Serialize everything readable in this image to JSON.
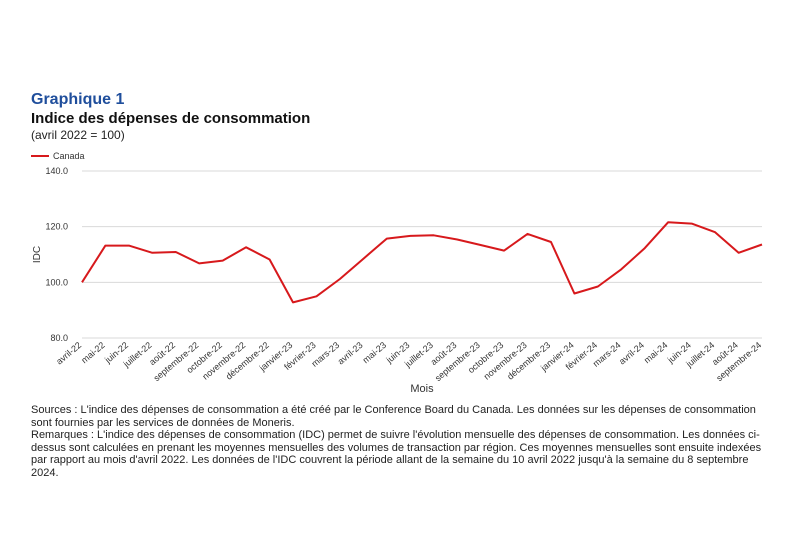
{
  "header": {
    "number": "Graphique 1",
    "title": "Indice des dépenses de consommation",
    "subtitle": "(avril 2022 = 100)"
  },
  "colors": {
    "series": "#d7191c",
    "grid": "#d9d9d9",
    "title": "#1f4e9c"
  },
  "chart_data": {
    "type": "line",
    "xlabel": "Mois",
    "ylabel": "IDC",
    "ylim": [
      80,
      140
    ],
    "yticks": [
      "80.0",
      "100.0",
      "120.0",
      "140.0"
    ],
    "ytick_values": [
      80,
      100,
      120,
      140
    ],
    "grid": true,
    "legend_position": "top-left",
    "categories": [
      "avril-22",
      "mai-22",
      "juin-22",
      "juillet-22",
      "août-22",
      "septembre-22",
      "octobre-22",
      "novembre-22",
      "décembre-22",
      "janvier-23",
      "février-23",
      "mars-23",
      "avril-23",
      "mai-23",
      "juin-23",
      "juillet-23",
      "août-23",
      "septembre-23",
      "octobre-23",
      "novembre-23",
      "décembre-23",
      "janvier-24",
      "février-24",
      "mars-24",
      "avril-24",
      "mai-24",
      "juin-24",
      "juillet-24",
      "août-24",
      "septembre-24"
    ],
    "series": [
      {
        "name": "Canada",
        "values": [
          100.0,
          113.2,
          113.2,
          110.6,
          110.9,
          106.8,
          107.8,
          112.6,
          108.2,
          92.8,
          95.0,
          101.2,
          108.5,
          115.7,
          116.7,
          116.9,
          115.4,
          113.4,
          111.4,
          117.4,
          114.5,
          96.0,
          98.5,
          104.7,
          112.3,
          121.6,
          121.1,
          118.0,
          110.6,
          113.6
        ]
      }
    ]
  },
  "notes": {
    "sources": "Sources : L'indice des dépenses de consommation a été créé par le Conference Board du Canada. Les données sur les dépenses de consommation sont fournies par les services de données de Moneris.",
    "remarks": "Remarques : L'indice des dépenses de consommation (IDC) permet de suivre l'évolution mensuelle des dépenses de consommation. Les données ci-dessus sont calculées en prenant les moyennes mensuelles des volumes de transaction par région. Ces moyennes mensuelles sont ensuite indexées par rapport au mois d'avril 2022. Les données de l'IDC couvrent la période allant de la semaine du 10 avril 2022 jusqu'à la semaine du 8 septembre 2024."
  }
}
